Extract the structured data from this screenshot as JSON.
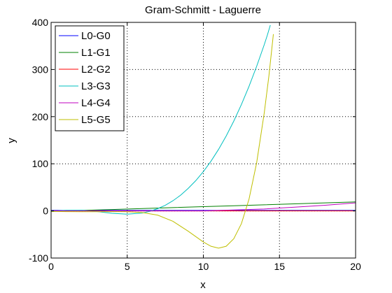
{
  "chart_data": {
    "type": "line",
    "title": "Gram-Schmitt - Laguerre",
    "xlabel": "x",
    "ylabel": "y",
    "xlim": [
      0,
      20
    ],
    "ylim": [
      -100,
      400
    ],
    "xticks": [
      0,
      5,
      10,
      15,
      20
    ],
    "yticks": [
      -100,
      0,
      100,
      200,
      300,
      400
    ],
    "grid": true,
    "legend_position": "top-left",
    "series": [
      {
        "name": "L0-G0",
        "color": "#0000ff",
        "x": [
          0,
          5,
          10,
          15,
          20
        ],
        "y": [
          1,
          1,
          1,
          1,
          1
        ]
      },
      {
        "name": "L1-G1",
        "color": "#008000",
        "x": [
          0,
          2,
          4,
          6,
          8,
          10,
          12,
          14,
          16,
          18,
          20
        ],
        "y": [
          -1,
          1,
          3,
          5,
          7,
          9,
          11,
          13,
          15,
          17,
          19
        ]
      },
      {
        "name": "L2-G2",
        "color": "#ff0000",
        "x": [
          0,
          2,
          4,
          6,
          8,
          10,
          12,
          14,
          16,
          18,
          20
        ],
        "y": [
          0,
          0,
          0,
          0,
          0,
          0,
          0,
          0,
          0,
          0,
          0
        ]
      },
      {
        "name": "L3-G3",
        "color": "#00bfbf",
        "x": [
          0,
          0.5,
          1,
          2,
          3,
          4,
          5,
          6,
          6.5,
          7,
          7.5,
          8,
          8.5,
          9,
          9.5,
          10,
          10.5,
          11,
          11.5,
          12,
          12.5,
          13,
          13.5,
          14,
          14.2,
          14.4
        ],
        "y": [
          -1.5,
          0.3,
          1.3,
          1.5,
          -1.4,
          -5,
          -6.9,
          -4.4,
          -0.8,
          4.8,
          11.9,
          21.5,
          33.2,
          47.6,
          64.1,
          83.3,
          105.4,
          130.6,
          158.9,
          190.6,
          225.7,
          264.3,
          306.7,
          352.7,
          372.6,
          394.2
        ]
      },
      {
        "name": "L4-G4",
        "color": "#bf00bf",
        "x": [
          0,
          2,
          4,
          6,
          8,
          10,
          12,
          14,
          16,
          18,
          20
        ],
        "y": [
          0,
          0,
          0,
          0,
          0,
          0,
          2,
          4,
          8,
          12,
          17
        ]
      },
      {
        "name": "L5-G5",
        "color": "#bfbf00",
        "x": [
          0,
          1,
          2,
          3,
          4,
          5,
          6,
          7,
          8,
          9,
          10,
          10.5,
          11,
          11.5,
          12,
          12.5,
          13,
          13.5,
          14,
          14.3,
          14.6
        ],
        "y": [
          -1,
          -1.5,
          -1.8,
          -1.8,
          -1.6,
          -1.8,
          -3.5,
          -9,
          -22,
          -43,
          -66,
          -75,
          -79,
          -75,
          -59,
          -27,
          25,
          102,
          208,
          285,
          375
        ]
      }
    ]
  }
}
